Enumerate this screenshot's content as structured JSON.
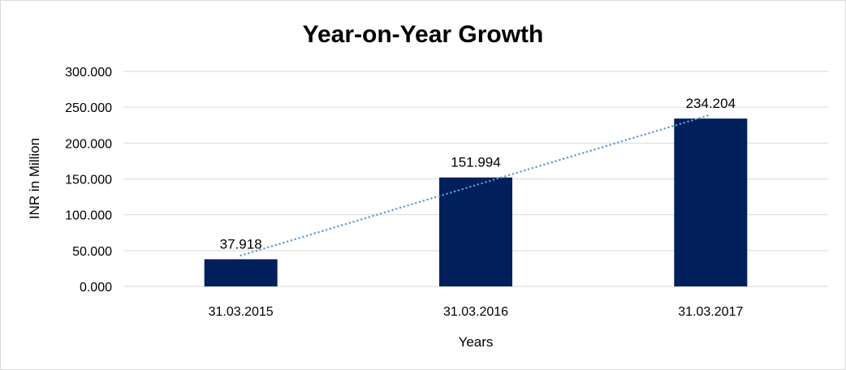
{
  "chart_data": {
    "type": "bar",
    "title": "Year-on-Year Growth",
    "xlabel": "Years",
    "ylabel": "INR in Million",
    "categories": [
      "31.03.2015",
      "31.03.2016",
      "31.03.2017"
    ],
    "values": [
      37.918,
      151.994,
      234.204
    ],
    "data_labels": [
      "37.918",
      "151.994",
      "234.204"
    ],
    "ylim": [
      0,
      300
    ],
    "yticks": [
      0,
      50,
      100,
      150,
      200,
      250,
      300
    ],
    "ytick_labels": [
      "0.000",
      "50.000",
      "100.000",
      "150.000",
      "200.000",
      "250.000",
      "300.000"
    ],
    "grid": true,
    "trendline": {
      "type": "linear",
      "style": "dotted",
      "color": "#5b9bd5"
    },
    "bar_color": "#001f5b",
    "grid_color": "#d9d9d9"
  }
}
